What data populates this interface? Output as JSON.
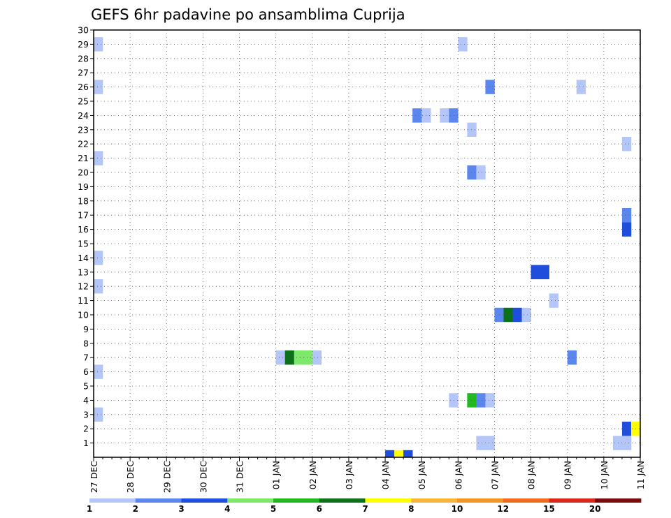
{
  "chart_data": {
    "type": "heatmap",
    "title": "GEFS 6hr padavine po ansamblima Cuprija",
    "xlabel": "",
    "ylabel": "",
    "x_start": "27 DEC",
    "x_step_hours": 6,
    "x_steps": 60,
    "x_tick_labels": [
      "27 DEC",
      "28 DEC",
      "29 DEC",
      "30 DEC",
      "31 DEC",
      "01 JAN",
      "02 JAN",
      "03 JAN",
      "04 JAN",
      "05 JAN",
      "06 JAN",
      "07 JAN",
      "08 JAN",
      "09 JAN",
      "10 JAN",
      "11 JAN"
    ],
    "y_tick_labels": [
      "1",
      "2",
      "3",
      "4",
      "5",
      "6",
      "7",
      "8",
      "9",
      "10",
      "11",
      "12",
      "13",
      "14",
      "15",
      "16",
      "17",
      "18",
      "19",
      "20",
      "21",
      "22",
      "23",
      "24",
      "25",
      "26",
      "27",
      "28",
      "29",
      "30"
    ],
    "ylim": [
      0,
      30
    ],
    "grid": true,
    "colorbar": {
      "levels": [
        "1",
        "2",
        "3",
        "4",
        "5",
        "6",
        "7",
        "8",
        "10",
        "12",
        "15",
        "20"
      ],
      "colors": [
        "#b3c6f7",
        "#5b86ee",
        "#1f4ddc",
        "#7ee86a",
        "#22b822",
        "#0c6f1a",
        "#ffff00",
        "#f7b53a",
        "#f39424",
        "#ef6a1c",
        "#d8281c",
        "#7a0b0b"
      ]
    },
    "cells": [
      {
        "member": 29,
        "step": 1,
        "cls": 1
      },
      {
        "member": 26,
        "step": 1,
        "cls": 1
      },
      {
        "member": 21,
        "step": 1,
        "cls": 1
      },
      {
        "member": 14,
        "step": 1,
        "cls": 1
      },
      {
        "member": 12,
        "step": 1,
        "cls": 1
      },
      {
        "member": 6,
        "step": 1,
        "cls": 1
      },
      {
        "member": 3,
        "step": 1,
        "cls": 1
      },
      {
        "member": 29,
        "step": 41,
        "cls": 1
      },
      {
        "member": 26,
        "step": 44,
        "cls": 2
      },
      {
        "member": 26,
        "step": 54,
        "cls": 1
      },
      {
        "member": 24,
        "step": 36,
        "cls": 2
      },
      {
        "member": 24,
        "step": 37,
        "cls": 1
      },
      {
        "member": 24,
        "step": 39,
        "cls": 1
      },
      {
        "member": 24,
        "step": 40,
        "cls": 2
      },
      {
        "member": 23,
        "step": 42,
        "cls": 1
      },
      {
        "member": 22,
        "step": 59,
        "cls": 1
      },
      {
        "member": 20,
        "step": 42,
        "cls": 2
      },
      {
        "member": 20,
        "step": 43,
        "cls": 1
      },
      {
        "member": 17,
        "step": 59,
        "cls": 2
      },
      {
        "member": 16,
        "step": 59,
        "cls": 3
      },
      {
        "member": 13,
        "step": 49,
        "cls": 3
      },
      {
        "member": 13,
        "step": 50,
        "cls": 3
      },
      {
        "member": 11,
        "step": 51,
        "cls": 1
      },
      {
        "member": 10,
        "step": 45,
        "cls": 2
      },
      {
        "member": 10,
        "step": 46,
        "cls": 6
      },
      {
        "member": 10,
        "step": 47,
        "cls": 3
      },
      {
        "member": 10,
        "step": 48,
        "cls": 1
      },
      {
        "member": 7,
        "step": 21,
        "cls": 1
      },
      {
        "member": 7,
        "step": 22,
        "cls": 6
      },
      {
        "member": 7,
        "step": 23,
        "cls": 4
      },
      {
        "member": 7,
        "step": 24,
        "cls": 4
      },
      {
        "member": 7,
        "step": 25,
        "cls": 1
      },
      {
        "member": 7,
        "step": 53,
        "cls": 2
      },
      {
        "member": 4,
        "step": 40,
        "cls": 1
      },
      {
        "member": 4,
        "step": 42,
        "cls": 5
      },
      {
        "member": 4,
        "step": 43,
        "cls": 2
      },
      {
        "member": 4,
        "step": 44,
        "cls": 1
      },
      {
        "member": 2,
        "step": 59,
        "cls": 3
      },
      {
        "member": 2,
        "step": 60,
        "cls": 7
      },
      {
        "member": 1,
        "step": 43,
        "cls": 1
      },
      {
        "member": 1,
        "step": 44,
        "cls": 1
      },
      {
        "member": 1,
        "step": 58,
        "cls": 1
      },
      {
        "member": 1,
        "step": 59,
        "cls": 1
      },
      {
        "member": 0,
        "step": 33,
        "cls": 3
      },
      {
        "member": 0,
        "step": 34,
        "cls": 7
      },
      {
        "member": 0,
        "step": 35,
        "cls": 3
      }
    ]
  }
}
